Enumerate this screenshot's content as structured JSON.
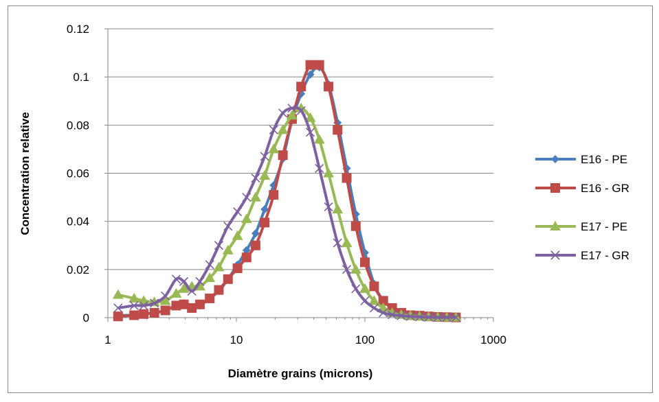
{
  "chart_data": {
    "type": "line",
    "title": "",
    "xlabel": "Diamètre grains (microns)",
    "ylabel": "Concentration relative",
    "x_scale": "log",
    "xlim": [
      1,
      1000
    ],
    "ylim": [
      0,
      0.12
    ],
    "x_ticks": [
      1,
      10,
      100,
      1000
    ],
    "x_tick_labels": [
      "1",
      "10",
      "100",
      "1000"
    ],
    "y_ticks": [
      0,
      0.02,
      0.04,
      0.06,
      0.08,
      0.1,
      0.12
    ],
    "y_tick_labels": [
      "0",
      "0.02",
      "0.04",
      "0.06",
      "0.08",
      "0.1",
      "0.12"
    ],
    "grid": "horizontal major gridlines",
    "legend_position": "right",
    "x": [
      1.2,
      1.6,
      1.9,
      2.3,
      2.8,
      3.4,
      3.9,
      4.5,
      5.2,
      6.2,
      7.3,
      8.6,
      10.2,
      12,
      14.1,
      16.6,
      19.5,
      23,
      27.1,
      31.9,
      37.6,
      44.2,
      52.1,
      61.3,
      72.2,
      85,
      100,
      118,
      139,
      163,
      192,
      226,
      266,
      313,
      369,
      434,
      511
    ],
    "series": [
      {
        "name": "E16 -  PE",
        "color": "#4a7ebb",
        "marker": "diamond",
        "values": [
          0.001,
          0.001,
          0.0015,
          0.002,
          0.003,
          0.005,
          0.006,
          0.004,
          0.005,
          0.008,
          0.011,
          0.016,
          0.022,
          0.028,
          0.035,
          0.045,
          0.055,
          0.066,
          0.082,
          0.093,
          0.101,
          0.104,
          0.097,
          0.081,
          0.062,
          0.043,
          0.027,
          0.014,
          0.007,
          0.004,
          0.002,
          0.001,
          0.001,
          0.0005,
          0.0003,
          0.0002,
          0.0001
        ]
      },
      {
        "name": "E16 -  GR",
        "color": "#be4b48",
        "marker": "square",
        "values": [
          0.0005,
          0.001,
          0.0015,
          0.002,
          0.003,
          0.005,
          0.0055,
          0.004,
          0.0055,
          0.008,
          0.0115,
          0.016,
          0.0205,
          0.025,
          0.03,
          0.0395,
          0.051,
          0.0675,
          0.0825,
          0.096,
          0.105,
          0.105,
          0.096,
          0.078,
          0.058,
          0.038,
          0.023,
          0.013,
          0.007,
          0.004,
          0.002,
          0.001,
          0.0008,
          0.0005,
          0.0003,
          0.0002,
          0.0001
        ]
      },
      {
        "name": "E17 -  PE",
        "color": "#98b954",
        "marker": "triangle",
        "values": [
          0.0095,
          0.008,
          0.007,
          0.0065,
          0.007,
          0.01,
          0.012,
          0.013,
          0.013,
          0.0165,
          0.021,
          0.028,
          0.034,
          0.041,
          0.05,
          0.059,
          0.07,
          0.078,
          0.084,
          0.087,
          0.083,
          0.074,
          0.06,
          0.045,
          0.031,
          0.02,
          0.012,
          0.007,
          0.004,
          0.002,
          0.0012,
          0.0008,
          0.0005,
          0.0003,
          0.0002,
          0.0001,
          0.0001
        ]
      },
      {
        "name": "E17 -  GR",
        "color": "#7d60a0",
        "marker": "x",
        "values": [
          0.004,
          0.005,
          0.005,
          0.006,
          0.009,
          0.016,
          0.015,
          0.011,
          0.015,
          0.022,
          0.03,
          0.038,
          0.044,
          0.05,
          0.058,
          0.067,
          0.078,
          0.085,
          0.087,
          0.086,
          0.077,
          0.062,
          0.046,
          0.031,
          0.02,
          0.012,
          0.007,
          0.004,
          0.002,
          0.0012,
          0.0008,
          0.0005,
          0.0003,
          0.0002,
          0.0001,
          0.0001,
          0.0001
        ]
      }
    ]
  }
}
